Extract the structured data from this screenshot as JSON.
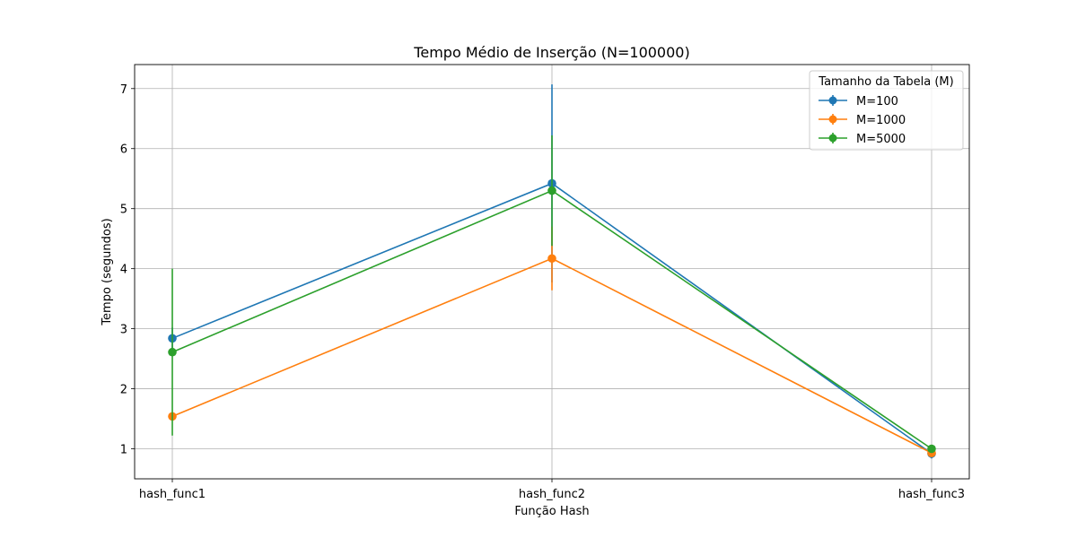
{
  "chart_data": {
    "type": "line",
    "title": "Tempo Médio de Inserção (N=100000)",
    "xlabel": "Função Hash",
    "ylabel": "Tempo (segundos)",
    "categories": [
      "hash_func1",
      "hash_func2",
      "hash_func3"
    ],
    "ylim": [
      0.5,
      7.4
    ],
    "yticks": [
      1,
      2,
      3,
      4,
      5,
      6,
      7
    ],
    "grid": true,
    "legend": {
      "title": "Tamanho da Tabela (M)",
      "placement": "top-right"
    },
    "series": [
      {
        "name": "M=100",
        "color": "#1f77b4",
        "values": [
          2.84,
          5.42,
          0.92
        ],
        "errors": [
          0.18,
          1.65,
          0.08
        ]
      },
      {
        "name": "M=1000",
        "color": "#ff7f0e",
        "values": [
          1.54,
          4.17,
          0.93
        ],
        "errors": [
          0.06,
          0.53,
          0.04
        ]
      },
      {
        "name": "M=5000",
        "color": "#2ca02c",
        "values": [
          2.61,
          5.3,
          1.0
        ],
        "errors": [
          1.39,
          0.92,
          0.03
        ]
      }
    ]
  }
}
